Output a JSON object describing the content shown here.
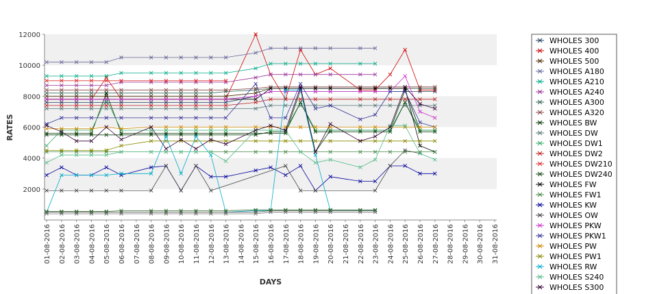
{
  "chart_data": {
    "type": "line",
    "title": "",
    "xlabel": "DAYS",
    "ylabel": "RATES",
    "ylim": [
      0,
      12000
    ],
    "yticks": [
      "2000",
      "4000",
      "6000",
      "8000",
      "10000",
      "12000"
    ],
    "categories": [
      "01-08-2016",
      "02-08-2016",
      "03-08-2016",
      "04-08-2016",
      "05-08-2016",
      "06-08-2016",
      "07-08-2016",
      "08-08-2016",
      "09-08-2016",
      "10-08-2016",
      "11-08-2016",
      "12-08-2016",
      "13-08-2016",
      "14-08-2016",
      "15-08-2016",
      "16-08-2016",
      "17-08-2016",
      "18-08-2016",
      "19-08-2016",
      "20-08-2016",
      "21-08-2016",
      "22-08-2016",
      "23-08-2016",
      "24-08-2016",
      "25-08-2016",
      "26-08-2016",
      "27-08-2016",
      "28-08-2016",
      "29-08-2016",
      "30-08-2016",
      "31-08-2016"
    ],
    "grid": "horizontal bands",
    "legend": "right",
    "series": [
      {
        "name": "WHOLES 300",
        "color": "#1f3a5f",
        "values": [
          7600,
          7600,
          7600,
          7600,
          7600,
          7600,
          null,
          7600,
          7600,
          7600,
          7600,
          7600,
          7600,
          null,
          8000,
          8300,
          8300,
          8300,
          8300,
          8300,
          null,
          8300,
          8300,
          8300,
          8300,
          8300,
          8300,
          null,
          null,
          null,
          null
        ]
      },
      {
        "name": "WHOLES 400",
        "color": "#cc0000",
        "values": [
          7800,
          7800,
          7800,
          7800,
          9200,
          7800,
          null,
          7800,
          7800,
          7800,
          7800,
          7800,
          7800,
          null,
          12000,
          9400,
          7800,
          11000,
          9400,
          9800,
          null,
          8400,
          8400,
          9400,
          11000,
          8400,
          8400,
          null,
          null,
          null,
          null
        ]
      },
      {
        "name": "WHOLES 500",
        "color": "#4a2a00",
        "values": [
          8000,
          8000,
          8000,
          8000,
          8000,
          8000,
          null,
          8000,
          8000,
          8000,
          8000,
          8000,
          8000,
          null,
          8200,
          8500,
          8500,
          8500,
          8500,
          8500,
          null,
          8500,
          8500,
          8500,
          8500,
          8500,
          8500,
          null,
          null,
          null,
          null
        ]
      },
      {
        "name": "WHOLES A180",
        "color": "#666699",
        "values": [
          10200,
          10200,
          10200,
          10200,
          10200,
          10500,
          null,
          10500,
          10500,
          10500,
          10500,
          10500,
          10500,
          null,
          10800,
          11100,
          11100,
          11100,
          11100,
          11100,
          null,
          11100,
          11100,
          null,
          null,
          null,
          null,
          null,
          null,
          null,
          null
        ]
      },
      {
        "name": "WHOLES A210",
        "color": "#00aa88",
        "values": [
          9300,
          9300,
          9300,
          9300,
          9300,
          9500,
          null,
          9500,
          9500,
          9500,
          9500,
          9500,
          9500,
          null,
          9800,
          10100,
          10100,
          10100,
          10100,
          10100,
          null,
          10100,
          10100,
          null,
          null,
          null,
          null,
          null,
          null,
          null,
          null
        ]
      },
      {
        "name": "WHOLES A240",
        "color": "#993399",
        "values": [
          8700,
          8700,
          8700,
          8700,
          8700,
          8900,
          null,
          8900,
          8900,
          8900,
          8900,
          8900,
          8900,
          null,
          9200,
          9400,
          9400,
          9400,
          9400,
          9400,
          null,
          9400,
          9400,
          null,
          null,
          null,
          null,
          null,
          null,
          null,
          null
        ]
      },
      {
        "name": "WHOLES A300",
        "color": "#336655",
        "values": [
          8200,
          8200,
          8200,
          8200,
          8200,
          8200,
          null,
          8200,
          8200,
          8200,
          8200,
          8200,
          8300,
          null,
          8400,
          8500,
          8500,
          8500,
          8500,
          8500,
          null,
          8500,
          8500,
          8500,
          8500,
          8500,
          8500,
          null,
          null,
          null,
          null
        ]
      },
      {
        "name": "WHOLES A320",
        "color": "#884444",
        "values": [
          8400,
          8400,
          8400,
          8400,
          8400,
          8400,
          null,
          8400,
          8400,
          8400,
          8400,
          8400,
          8400,
          null,
          8500,
          8600,
          8600,
          8600,
          8600,
          8600,
          null,
          8600,
          8600,
          8600,
          8600,
          8600,
          8600,
          null,
          null,
          null,
          null
        ]
      },
      {
        "name": "WHOLES BW",
        "color": "#003300",
        "values": [
          5600,
          5600,
          5600,
          5600,
          8200,
          5600,
          null,
          5600,
          5600,
          5600,
          5600,
          5600,
          5600,
          null,
          5600,
          5600,
          5600,
          8400,
          4400,
          5800,
          null,
          5800,
          5800,
          5800,
          8400,
          5800,
          5800,
          null,
          null,
          null,
          null
        ]
      },
      {
        "name": "WHOLES DW",
        "color": "#557777",
        "values": [
          7200,
          7200,
          7200,
          7200,
          7200,
          7200,
          null,
          7200,
          7200,
          7200,
          7200,
          7200,
          7200,
          null,
          7200,
          7400,
          7400,
          7400,
          7400,
          7400,
          null,
          7400,
          7400,
          7400,
          7400,
          7400,
          7400,
          null,
          null,
          null,
          null
        ]
      },
      {
        "name": "WHOLES DW1",
        "color": "#33aa66",
        "values": [
          4800,
          5800,
          5800,
          5800,
          7800,
          5800,
          null,
          5800,
          5800,
          5800,
          5800,
          5800,
          5800,
          null,
          5800,
          5800,
          5800,
          7600,
          5800,
          5800,
          null,
          5800,
          5800,
          5800,
          7600,
          5800,
          5800,
          null,
          null,
          null,
          null
        ]
      },
      {
        "name": "WHOLES DW2",
        "color": "#bb2222",
        "values": [
          7400,
          7400,
          7400,
          7400,
          7400,
          7400,
          null,
          7400,
          7400,
          7400,
          7400,
          7400,
          7400,
          null,
          7600,
          7800,
          7800,
          7800,
          7800,
          7800,
          null,
          7800,
          7800,
          7800,
          7800,
          7800,
          7800,
          null,
          null,
          null,
          null
        ]
      },
      {
        "name": "WHOLES DW210",
        "color": "#dd3333",
        "values": [
          9000,
          9000,
          9000,
          9000,
          9000,
          9000,
          null,
          9000,
          9000,
          9000,
          9000,
          9000,
          9000,
          null,
          null,
          null,
          null,
          null,
          null,
          null,
          null,
          null,
          null,
          null,
          null,
          null,
          null,
          null,
          null,
          null,
          null
        ]
      },
      {
        "name": "WHOLES DW240",
        "color": "#114411",
        "values": [
          5500,
          5500,
          5500,
          5500,
          5500,
          5500,
          null,
          5500,
          5500,
          5500,
          5500,
          5500,
          5500,
          null,
          5500,
          5700,
          5700,
          7600,
          5700,
          5700,
          null,
          5700,
          5700,
          5700,
          7600,
          5700,
          5700,
          null,
          null,
          null,
          null
        ]
      },
      {
        "name": "WHOLES FW",
        "color": "#000000",
        "values": [
          7800,
          7800,
          7800,
          7800,
          7800,
          7800,
          null,
          7800,
          7800,
          7800,
          7800,
          7800,
          7800,
          null,
          7800,
          8500,
          8500,
          8500,
          8500,
          8500,
          null,
          8500,
          8500,
          8500,
          8500,
          4800,
          4400,
          null,
          null,
          null,
          null
        ]
      },
      {
        "name": "WHOLES FW1",
        "color": "#448844",
        "values": [
          4400,
          4400,
          4400,
          4400,
          4400,
          4400,
          null,
          4400,
          4400,
          4400,
          4400,
          4400,
          4400,
          null,
          4400,
          4400,
          4400,
          4400,
          4400,
          4400,
          null,
          4400,
          4400,
          4400,
          4400,
          4400,
          4400,
          null,
          null,
          null,
          null
        ]
      },
      {
        "name": "WHOLES KW",
        "color": "#000099",
        "values": [
          2900,
          3400,
          2900,
          2900,
          3400,
          2900,
          null,
          3400,
          3500,
          1900,
          3500,
          2800,
          2800,
          null,
          3200,
          3400,
          2900,
          3500,
          1900,
          2800,
          null,
          2500,
          2500,
          3500,
          3500,
          3000,
          3000,
          null,
          null,
          null,
          null
        ]
      },
      {
        "name": "WHOLES OW",
        "color": "#444444",
        "values": [
          1900,
          1900,
          1900,
          1900,
          1900,
          1900,
          null,
          1900,
          3500,
          1900,
          3500,
          1900,
          null,
          null,
          null,
          null,
          3500,
          1900,
          1900,
          null,
          null,
          null,
          1900,
          3500,
          4500,
          4300,
          null,
          null,
          null,
          null,
          null
        ]
      },
      {
        "name": "WHOLES PKW",
        "color": "#cc33cc",
        "values": [
          7800,
          7800,
          7800,
          7800,
          7800,
          7800,
          null,
          7800,
          7800,
          7800,
          7800,
          7800,
          7800,
          null,
          8000,
          8300,
          8300,
          8300,
          8300,
          8300,
          null,
          8300,
          8300,
          8300,
          9300,
          7000,
          6600,
          null,
          null,
          null,
          null
        ]
      },
      {
        "name": "WHOLES PKW1",
        "color": "#333399",
        "values": [
          6200,
          6600,
          6600,
          6600,
          6600,
          6600,
          null,
          6600,
          6600,
          6600,
          6600,
          6600,
          6600,
          null,
          8800,
          6600,
          6600,
          8800,
          7200,
          7400,
          null,
          6500,
          6800,
          8300,
          8300,
          6300,
          6000,
          null,
          null,
          null,
          null
        ]
      },
      {
        "name": "WHOLES PW",
        "color": "#cc8800",
        "values": [
          5900,
          5900,
          5900,
          5900,
          6000,
          5900,
          null,
          6000,
          6000,
          6000,
          6000,
          6000,
          6000,
          null,
          6000,
          6000,
          6000,
          6000,
          6000,
          6000,
          null,
          6000,
          6000,
          6000,
          6000,
          6000,
          6000,
          null,
          null,
          null,
          null
        ]
      },
      {
        "name": "WHOLES PW1",
        "color": "#888800",
        "values": [
          4500,
          4500,
          4500,
          4500,
          4500,
          4800,
          null,
          5100,
          5100,
          5100,
          5100,
          5100,
          5100,
          null,
          5100,
          5100,
          5100,
          5100,
          5100,
          5100,
          null,
          5100,
          5100,
          5100,
          5100,
          5100,
          5100,
          null,
          null,
          null,
          null
        ]
      },
      {
        "name": "WHOLES RW",
        "color": "#00aacc",
        "values": [
          500,
          2900,
          2900,
          2900,
          2900,
          3000,
          null,
          3000,
          5400,
          3000,
          5400,
          4200,
          500,
          null,
          600,
          600,
          8400,
          8400,
          4200,
          600,
          null,
          600,
          600,
          null,
          null,
          null,
          null,
          null,
          null,
          null,
          null
        ]
      },
      {
        "name": "WHOLES S240",
        "color": "#55bb88",
        "values": [
          3700,
          4200,
          4200,
          4200,
          4200,
          4400,
          null,
          4400,
          4400,
          4400,
          4400,
          4400,
          3800,
          null,
          5800,
          5800,
          5800,
          4400,
          3700,
          3900,
          null,
          3400,
          3900,
          6100,
          6100,
          4300,
          3900,
          null,
          null,
          null,
          null
        ]
      },
      {
        "name": "WHOLES S300",
        "color": "#330033",
        "values": [
          6100,
          5700,
          5100,
          5100,
          6000,
          5200,
          null,
          6000,
          4600,
          5200,
          4600,
          5200,
          4900,
          null,
          5800,
          6100,
          5800,
          8600,
          4400,
          6200,
          null,
          5100,
          5400,
          6000,
          8600,
          7500,
          7200,
          null,
          null,
          null,
          null
        ]
      },
      {
        "name": "",
        "color": "#555555",
        "values": [
          500,
          500,
          500,
          500,
          500,
          500,
          null,
          500,
          500,
          500,
          500,
          500,
          500,
          null,
          500,
          600,
          600,
          600,
          600,
          600,
          null,
          600,
          600,
          null,
          null,
          null,
          null,
          null,
          null,
          null,
          null
        ]
      },
      {
        "name": "",
        "color": "#777777",
        "values": [
          400,
          400,
          400,
          400,
          400,
          400,
          null,
          400,
          400,
          400,
          400,
          400,
          400,
          null,
          400,
          500,
          500,
          500,
          500,
          500,
          null,
          500,
          500,
          null,
          null,
          null,
          null,
          null,
          null,
          null,
          null
        ]
      },
      {
        "name": "",
        "color": "#2a6a2a",
        "values": [
          550,
          550,
          550,
          550,
          550,
          600,
          null,
          600,
          600,
          600,
          600,
          600,
          600,
          null,
          650,
          650,
          650,
          650,
          650,
          650,
          null,
          650,
          650,
          null,
          null,
          null,
          null,
          null,
          null,
          null,
          null
        ]
      }
    ]
  }
}
